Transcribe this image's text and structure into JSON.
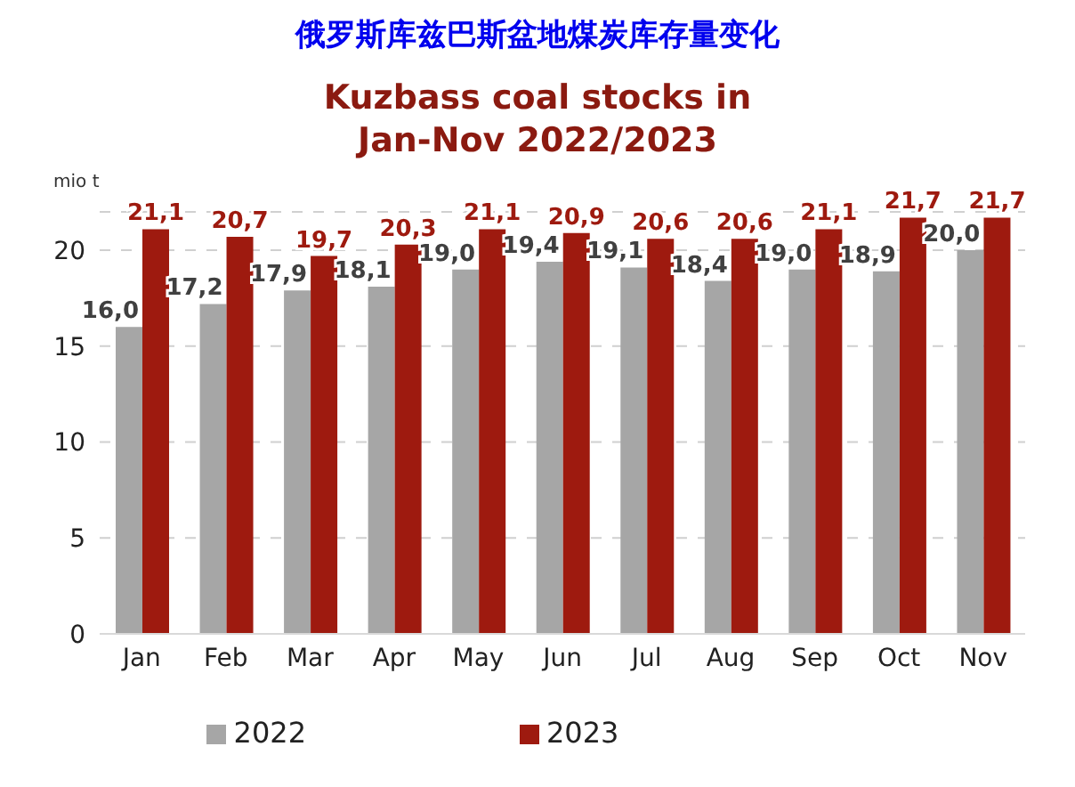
{
  "chart_data": {
    "type": "bar",
    "title": "俄罗斯库兹巴斯盆地煤炭库存量变化",
    "subtitle": "Kuzbass coal stocks in\nJan-Nov 2022/2023",
    "ylabel": "mio t",
    "categories": [
      "Jan",
      "Feb",
      "Mar",
      "Apr",
      "May",
      "Jun",
      "Jul",
      "Aug",
      "Sep",
      "Oct",
      "Nov"
    ],
    "series": [
      {
        "name": "2022",
        "color": "#a6a6a6",
        "values": [
          16.0,
          17.2,
          17.9,
          18.1,
          19.0,
          19.4,
          19.1,
          18.4,
          19.0,
          18.9,
          20.0
        ],
        "value_labels": [
          "16,0",
          "17,2",
          "17,9",
          "18,1",
          "19,0",
          "19,4",
          "19,1",
          "18,4",
          "19,0",
          "18,9",
          "20,0"
        ]
      },
      {
        "name": "2023",
        "color": "#9e1a0f",
        "values": [
          21.1,
          20.7,
          19.7,
          20.3,
          21.1,
          20.9,
          20.6,
          20.6,
          21.1,
          21.7,
          21.7
        ],
        "value_labels": [
          "21,1",
          "20,7",
          "19,7",
          "20,3",
          "21,1",
          "20,9",
          "20,6",
          "20,6",
          "21,1",
          "21,7",
          "21,7"
        ]
      }
    ],
    "ylim": [
      0,
      22
    ],
    "yticks": [
      0,
      5,
      10,
      15,
      20
    ],
    "grid": "y",
    "legend": "bottom"
  }
}
